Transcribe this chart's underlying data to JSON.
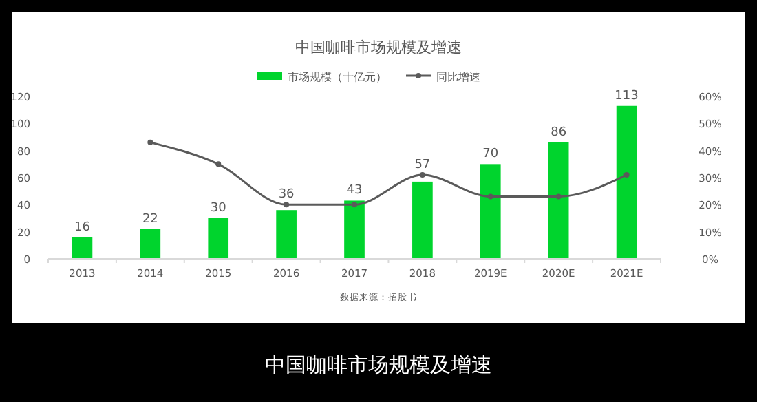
{
  "chart_data": {
    "type": "bar",
    "title": "中国咖啡市场规模及增速",
    "categories": [
      "2013",
      "2014",
      "2015",
      "2016",
      "2017",
      "2018",
      "2019E",
      "2020E",
      "2021E"
    ],
    "series": [
      {
        "name": "市场规模（十亿元）",
        "color": "#00d42d",
        "values": [
          16,
          22,
          30,
          36,
          43,
          57,
          70,
          86,
          113
        ],
        "value_labels": [
          "16",
          "22",
          "30",
          "36",
          "43",
          "57",
          "70",
          "86",
          "113"
        ]
      },
      {
        "name": "同比增速",
        "type": "line",
        "axis": "y2",
        "color": "#5a5a5a",
        "marker": "circle",
        "values": [
          null,
          43,
          35,
          20,
          20,
          31,
          23,
          23,
          31
        ]
      }
    ],
    "ylim": [
      0,
      120
    ],
    "yticks": [
      0,
      20,
      40,
      60,
      80,
      100,
      120
    ],
    "y2lim": [
      0,
      60
    ],
    "y2ticks": [
      {
        "value": 0,
        "label": "0%"
      },
      {
        "value": 10,
        "label": "10%"
      },
      {
        "value": 20,
        "label": "20%"
      },
      {
        "value": 30,
        "label": "30%"
      },
      {
        "value": 40,
        "label": "40%"
      },
      {
        "value": 50,
        "label": "50%"
      },
      {
        "value": 60,
        "label": "60%"
      }
    ],
    "grid": false,
    "legend": "top",
    "annotations": [
      "数据来源：招股书",
      "中国咖啡市场规模及增速"
    ]
  }
}
